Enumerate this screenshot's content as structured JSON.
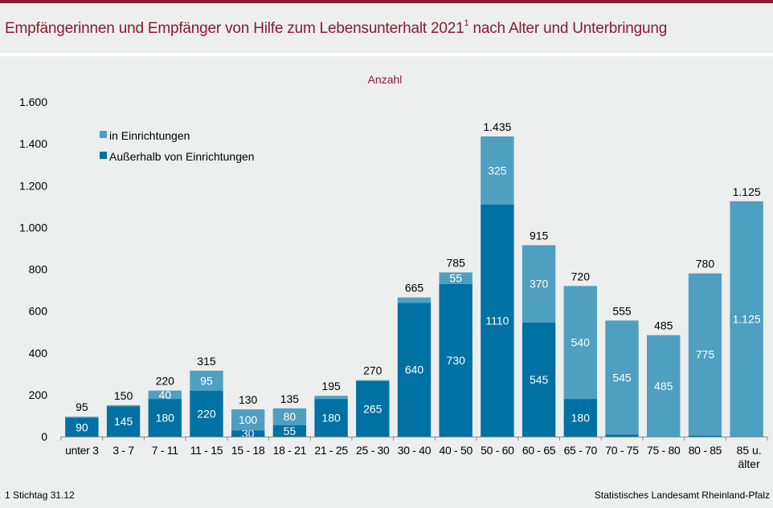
{
  "title": {
    "main": "Empfängerinnen und Empfänger von Hilfe zum Lebensunterhalt 2021",
    "superscript": "1",
    "rest": " nach Alter und Unterbringung"
  },
  "colors": {
    "accent": "#8a1b34",
    "in_einrichtungen": "#4f9fc1",
    "ausserhalb": "#0071a3",
    "background": "#edeeee"
  },
  "footer": {
    "footnote": "1 Stichtag 31.12",
    "source": "Statistisches Landesamt Rheinland-Pfalz"
  },
  "chart_data": {
    "type": "bar",
    "stacked": true,
    "title": "Empfängerinnen und Empfänger von Hilfe zum Lebensunterhalt 2021 nach Alter und Unterbringung",
    "ylabel": "Anzahl",
    "xlabel": "",
    "ylim": [
      0,
      1600
    ],
    "yticks": [
      0,
      200,
      400,
      600,
      800,
      1000,
      1200,
      1400,
      1600
    ],
    "ytick_labels": [
      "0",
      "200",
      "400",
      "600",
      "800",
      "1.000",
      "1.200",
      "1.400",
      "1.600"
    ],
    "grid": false,
    "legend_position": "top-left",
    "categories": [
      "unter 3",
      "3 - 7",
      "7 - 11",
      "11 - 15",
      "15 - 18",
      "18 - 21",
      "21 - 25",
      "25 - 30",
      "30 - 40",
      "40 - 50",
      "50 - 60",
      "60 - 65",
      "65 - 70",
      "70 - 75",
      "75 - 80",
      "80 - 85",
      "85 u. älter"
    ],
    "series": [
      {
        "name": "Außerhalb von Einrichtungen",
        "color": "#0071a3",
        "values": [
          90,
          145,
          180,
          220,
          30,
          55,
          180,
          265,
          640,
          730,
          1110,
          545,
          180,
          10,
          0,
          5,
          0
        ],
        "labels": [
          "90",
          "145",
          "180",
          "220",
          "30",
          "55",
          "180",
          "265",
          "640",
          "730",
          "1110",
          "545",
          "180",
          "",
          "",
          "",
          ""
        ]
      },
      {
        "name": "in Einrichtungen",
        "color": "#4f9fc1",
        "values": [
          5,
          5,
          40,
          95,
          100,
          80,
          15,
          5,
          25,
          55,
          325,
          370,
          540,
          545,
          485,
          775,
          1125
        ],
        "labels": [
          "",
          "",
          "40",
          "95",
          "100",
          "80",
          "",
          "",
          "",
          "55",
          "325",
          "370",
          "540",
          "545",
          "485",
          "775",
          "1.125"
        ]
      }
    ],
    "totals": [
      95,
      150,
      220,
      315,
      130,
      135,
      195,
      270,
      665,
      785,
      1435,
      915,
      720,
      555,
      485,
      780,
      1125
    ],
    "total_labels": [
      "95",
      "150",
      "220",
      "315",
      "130",
      "135",
      "195",
      "270",
      "665",
      "785",
      "1.435",
      "915",
      "720",
      "555",
      "485",
      "780",
      "1.125"
    ],
    "legend": [
      "in Einrichtungen",
      "Außerhalb von Einrichtungen"
    ]
  }
}
